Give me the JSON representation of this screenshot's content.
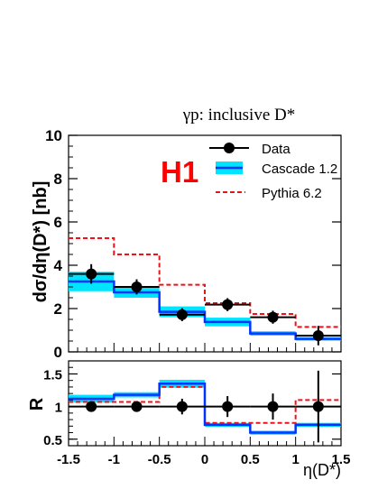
{
  "chart_data": [
    {
      "type": "step",
      "title": "γp:  inclusive D*",
      "logo": "H1",
      "ylabel": "dσ/dη(D*) [nb]",
      "xlabel": "",
      "xlim": [
        -1.5,
        1.5
      ],
      "ylim": [
        0,
        10
      ],
      "yticks": [
        0,
        2,
        4,
        6,
        8,
        10
      ],
      "legend_position": "top-right",
      "colors": {
        "data": "#000000",
        "cascade_line": "#0033ff",
        "cascade_band": "#00e5ff",
        "pythia": "#e8141a",
        "logo": "#ff0000"
      },
      "bin_edges": [
        -1.5,
        -1.0,
        -0.5,
        0.0,
        0.5,
        1.0,
        1.5
      ],
      "data": {
        "name": "Data",
        "x": [
          -1.25,
          -0.75,
          -0.25,
          0.25,
          0.75,
          1.25
        ],
        "y": [
          3.6,
          3.0,
          1.72,
          2.18,
          1.6,
          0.75
        ],
        "yerr": [
          0.45,
          0.35,
          0.3,
          0.3,
          0.3,
          0.45
        ]
      },
      "cascade": {
        "name": "Cascade 1.2",
        "values": [
          3.25,
          2.75,
          1.85,
          1.38,
          0.85,
          0.6
        ],
        "band": [
          0.45,
          0.25,
          0.25,
          0.2,
          0.1,
          0.08
        ]
      },
      "pythia": {
        "name": "Pythia 6.2",
        "values": [
          5.25,
          4.5,
          3.1,
          2.25,
          1.75,
          1.15
        ]
      }
    },
    {
      "type": "step",
      "ylabel": "R",
      "xlabel": "η(D*)",
      "xlim": [
        -1.5,
        1.5
      ],
      "ylim": [
        0.4,
        1.7
      ],
      "xticks": [
        "-1.5",
        "-1",
        "-0.5",
        "0",
        "0.5",
        "1",
        "1.5"
      ],
      "yticks": [
        "0.5",
        "1",
        "1.5"
      ],
      "bin_edges": [
        -1.5,
        -1.0,
        -0.5,
        0.0,
        0.5,
        1.0,
        1.5
      ],
      "data": {
        "x": [
          -1.25,
          -0.75,
          -0.25,
          0.25,
          0.75,
          1.25
        ],
        "y": [
          1.0,
          1.0,
          1.0,
          1.0,
          1.0,
          1.0
        ],
        "yerr": [
          0.0,
          0.0,
          0.12,
          0.16,
          0.2,
          0.55
        ]
      },
      "cascade": {
        "values": [
          1.12,
          1.18,
          1.35,
          0.72,
          0.6,
          0.72
        ],
        "band": [
          0.06,
          0.04,
          0.06,
          0.03,
          0.03,
          0.03
        ]
      },
      "pythia": {
        "values": [
          1.07,
          1.07,
          1.3,
          0.75,
          0.75,
          1.1
        ]
      }
    }
  ]
}
